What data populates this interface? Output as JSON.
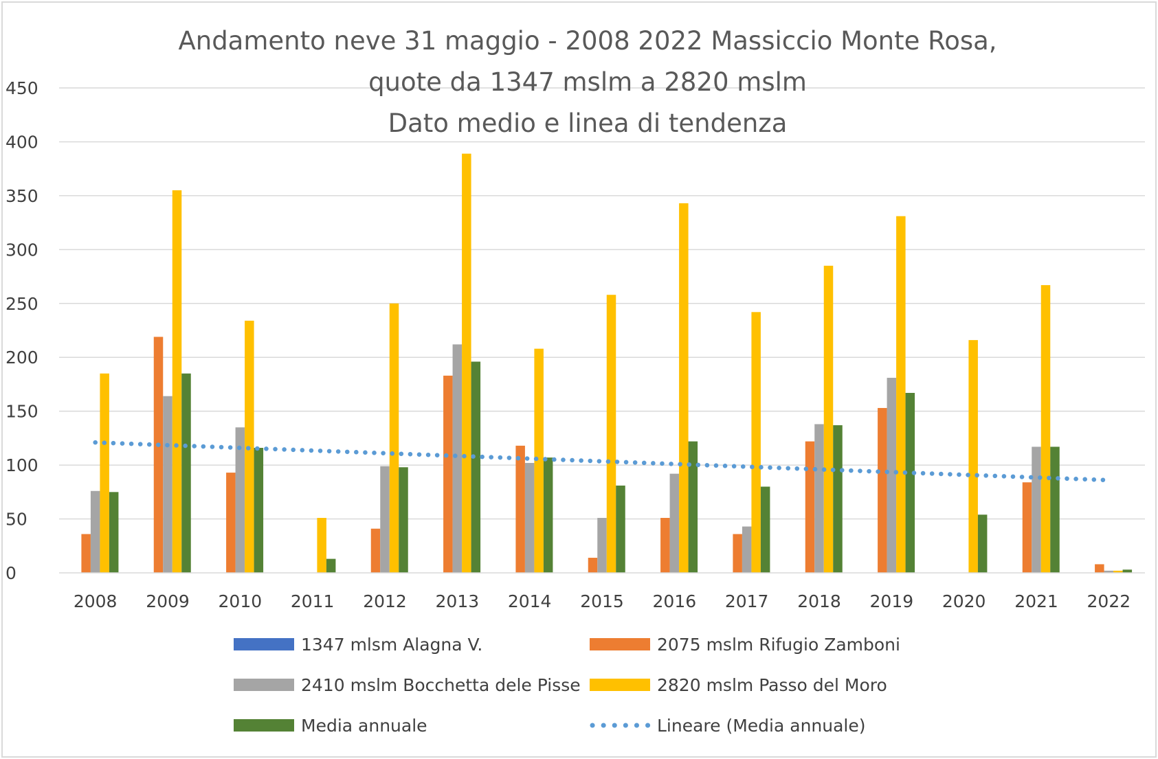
{
  "chart_data": {
    "type": "bar",
    "title": [
      "Andamento neve 31 maggio - 2008 2022 Massiccio Monte Rosa,",
      "quote da 1347 mslm a 2820 mslm",
      "Dato medio e linea di tendenza"
    ],
    "categories": [
      "2008",
      "2009",
      "2010",
      "2011",
      "2012",
      "2013",
      "2014",
      "2015",
      "2016",
      "2017",
      "2018",
      "2019",
      "2020",
      "2021",
      "2022"
    ],
    "ylim": [
      0,
      450
    ],
    "yticks": [
      0,
      50,
      100,
      150,
      200,
      250,
      300,
      350,
      400,
      450
    ],
    "grid": true,
    "legend_position": "bottom",
    "series": [
      {
        "name": "1347 mlsm Alagna V.",
        "color": "#4472C4",
        "values": [
          0,
          0,
          0,
          0,
          0,
          0,
          0,
          0,
          0,
          0,
          0,
          0,
          0,
          0,
          0
        ]
      },
      {
        "name": "2075 mslm Rifugio Zamboni",
        "color": "#ED7D31",
        "values": [
          36,
          219,
          93,
          0,
          41,
          183,
          118,
          14,
          51,
          36,
          122,
          153,
          0,
          84,
          8
        ]
      },
      {
        "name": "2410 mslm Bocchetta dele Pisse",
        "color": "#A5A5A5",
        "values": [
          76,
          164,
          135,
          0,
          99,
          212,
          102,
          51,
          92,
          43,
          138,
          181,
          0,
          117,
          2
        ]
      },
      {
        "name": "2820 mslm Passo del Moro",
        "color": "#FFC000",
        "values": [
          185,
          355,
          234,
          51,
          250,
          389,
          208,
          258,
          343,
          242,
          285,
          331,
          216,
          267,
          2
        ]
      },
      {
        "name": "Media annuale",
        "color": "#548235",
        "values": [
          75,
          185,
          116,
          13,
          98,
          196,
          107,
          81,
          122,
          80,
          137,
          167,
          54,
          117,
          3
        ]
      }
    ],
    "trendline": {
      "name": "Lineare (Media annuale)",
      "color": "#5B9BD5",
      "style": "dotted",
      "start": 121,
      "end": 86
    }
  }
}
